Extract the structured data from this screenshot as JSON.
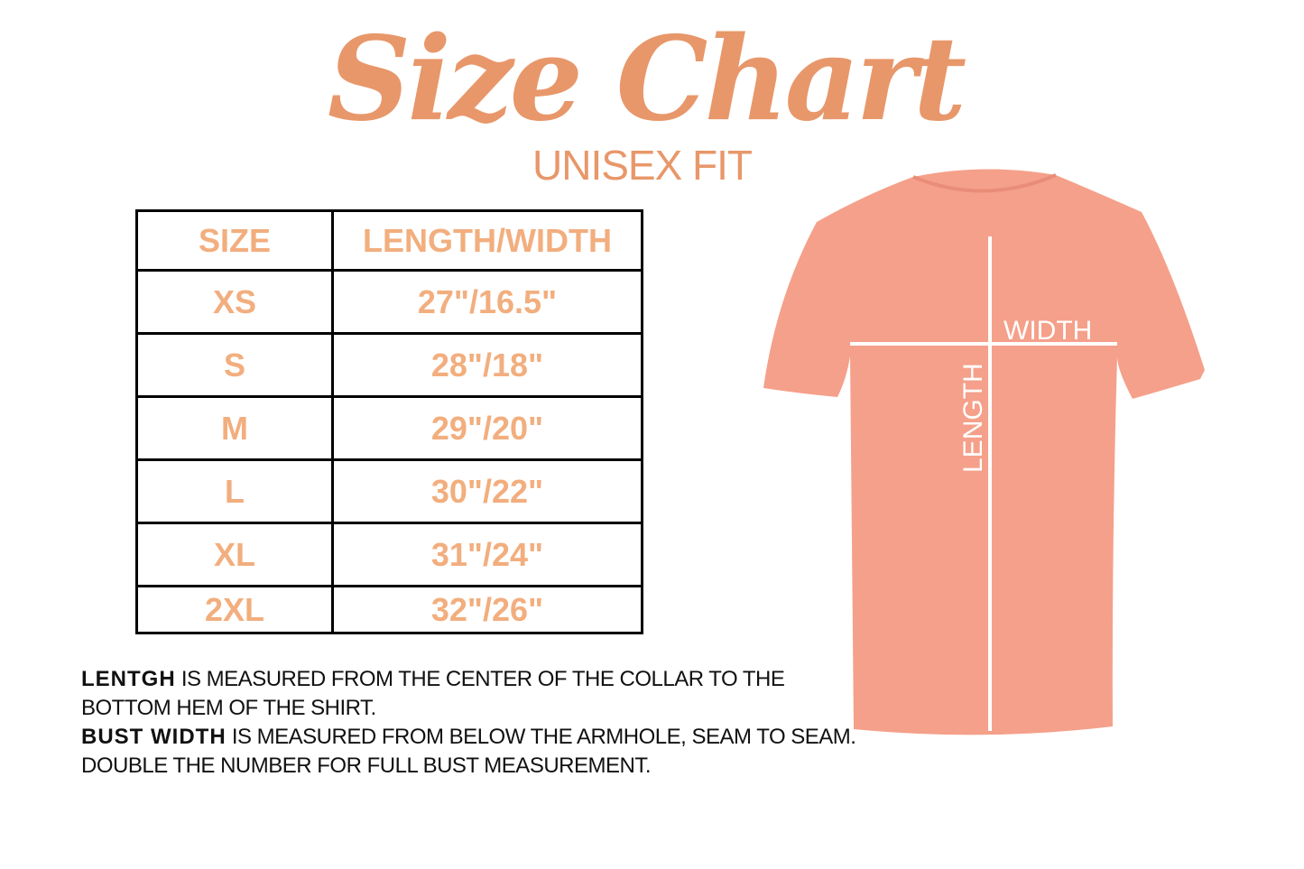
{
  "title": "Size Chart",
  "subtitle": "UNISEX FIT",
  "table": {
    "headers": [
      "SIZE",
      "LENGTH/WIDTH"
    ],
    "rows": [
      [
        "XS",
        "27\"/16.5\""
      ],
      [
        "S",
        "28\"/18\""
      ],
      [
        "M",
        "29\"/20\""
      ],
      [
        "L",
        "30\"/22\""
      ],
      [
        "XL",
        "31\"/24\""
      ],
      [
        "2XL",
        "32\"/26\""
      ]
    ]
  },
  "shirt": {
    "width_label": "WIDTH",
    "length_label": "LENGTH",
    "color": "#F5A08A"
  },
  "notes": [
    {
      "bold": "LENTGH",
      "text": " IS MEASURED FROM THE CENTER OF THE COLLAR TO THE BOTTOM HEM OF THE SHIRT."
    },
    {
      "bold": "BUST WIDTH",
      "text": " IS MEASURED FROM BELOW THE ARMHOLE, SEAM TO SEAM. DOUBLE THE NUMBER FOR FULL BUST MEASUREMENT."
    }
  ],
  "colors": {
    "title": "#E8976A",
    "table_text": "#F2AE7E"
  }
}
